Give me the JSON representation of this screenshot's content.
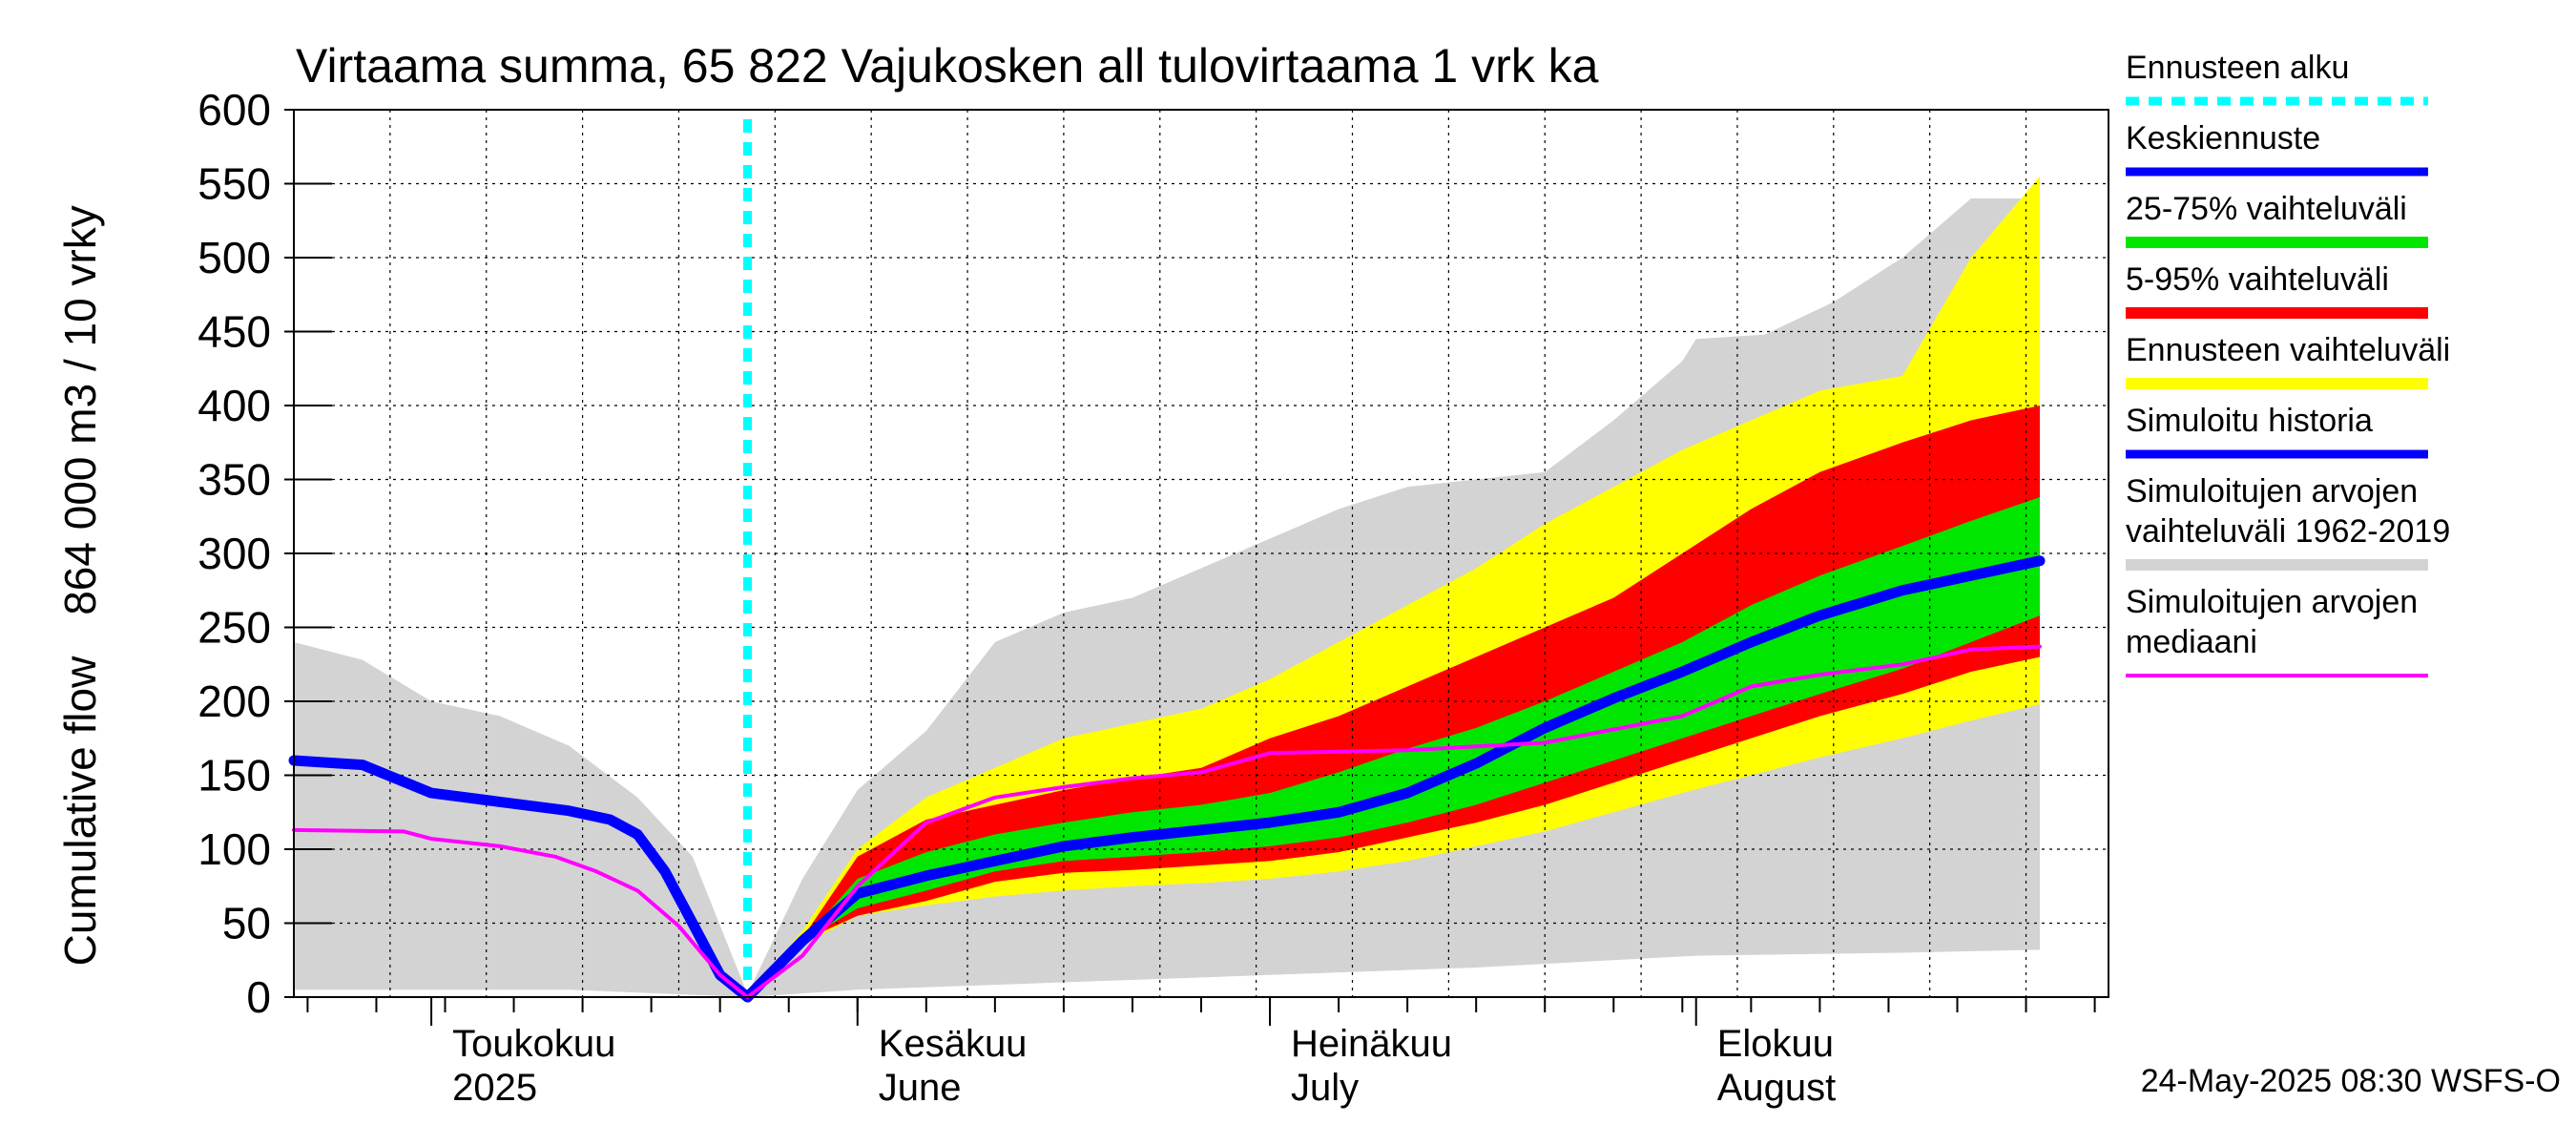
{
  "colors": {
    "sim_range": "#d3d3d3",
    "ens_range": "#ffff00",
    "p5_95": "#ff0000",
    "p25_75": "#00e600",
    "mean": "#0000ff",
    "median": "#ff00ff",
    "forecast_start": "#00ffff",
    "grid": "#000000"
  },
  "chart_data": {
    "type": "area",
    "title": "Virtaama summa, 65 822 Vajukosken all tulovirtaama 1 vrk ka",
    "ylabel_top": "864 000 m3 / 10 vrky",
    "ylabel_bottom": "Cumulative flow",
    "footer": "24-May-2025 08:30 WSFS-O",
    "xlim": [
      "2025-04-21",
      "2025-08-31"
    ],
    "ylim": [
      0,
      600
    ],
    "yticks": [
      0,
      50,
      100,
      150,
      200,
      250,
      300,
      350,
      400,
      450,
      500,
      550,
      600
    ],
    "forecast_start": "2025-05-24",
    "month_labels": [
      {
        "date": "2025-05-01",
        "line1": "Toukokuu",
        "line2": "2025"
      },
      {
        "date": "2025-06-01",
        "line1": "Kesäkuu",
        "line2": "June"
      },
      {
        "date": "2025-07-01",
        "line1": "Heinäkuu",
        "line2": "July"
      },
      {
        "date": "2025-08-01",
        "line1": "Elokuu",
        "line2": "August"
      }
    ],
    "legend": [
      {
        "label": "Ennusteen alku",
        "key": "forecast_start",
        "style": "dotted"
      },
      {
        "label": "Keskiennuste",
        "key": "mean",
        "style": "line"
      },
      {
        "label": "25-75% vaihteluväli",
        "key": "p25_75",
        "style": "band"
      },
      {
        "label": "5-95% vaihteluväli",
        "key": "p5_95",
        "style": "band"
      },
      {
        "label": "Ennusteen vaihteluväli",
        "key": "ens_range",
        "style": "band"
      },
      {
        "label": "Simuloitu historia",
        "key": "mean",
        "style": "line"
      },
      {
        "label": "Simuloitujen arvojen\nvaihteluväli 1962-2019",
        "key": "sim_range",
        "style": "band"
      },
      {
        "label": "Simuloitujen arvojen\nmediaani",
        "key": "median",
        "style": "line"
      }
    ],
    "sim_range_upper": [
      {
        "x": "2025-04-21",
        "y": 240
      },
      {
        "x": "2025-04-26",
        "y": 228
      },
      {
        "x": "2025-05-01",
        "y": 200
      },
      {
        "x": "2025-05-06",
        "y": 190
      },
      {
        "x": "2025-05-11",
        "y": 170
      },
      {
        "x": "2025-05-16",
        "y": 135
      },
      {
        "x": "2025-05-20",
        "y": 95
      },
      {
        "x": "2025-05-24",
        "y": 2
      },
      {
        "x": "2025-05-28",
        "y": 80
      },
      {
        "x": "2025-06-01",
        "y": 140
      },
      {
        "x": "2025-06-06",
        "y": 180
      },
      {
        "x": "2025-06-11",
        "y": 240
      },
      {
        "x": "2025-06-16",
        "y": 260
      },
      {
        "x": "2025-06-21",
        "y": 270
      },
      {
        "x": "2025-06-26",
        "y": 290
      },
      {
        "x": "2025-07-01",
        "y": 310
      },
      {
        "x": "2025-07-06",
        "y": 330
      },
      {
        "x": "2025-07-11",
        "y": 345
      },
      {
        "x": "2025-07-16",
        "y": 350
      },
      {
        "x": "2025-07-21",
        "y": 355
      },
      {
        "x": "2025-07-26",
        "y": 390
      },
      {
        "x": "2025-07-31",
        "y": 430
      },
      {
        "x": "2025-08-01",
        "y": 445
      },
      {
        "x": "2025-08-06",
        "y": 448
      },
      {
        "x": "2025-08-11",
        "y": 470
      },
      {
        "x": "2025-08-16",
        "y": 500
      },
      {
        "x": "2025-08-21",
        "y": 540
      },
      {
        "x": "2025-08-26",
        "y": 540
      }
    ],
    "sim_range_lower": [
      {
        "x": "2025-04-21",
        "y": 5
      },
      {
        "x": "2025-05-11",
        "y": 5
      },
      {
        "x": "2025-05-24",
        "y": 0
      },
      {
        "x": "2025-06-01",
        "y": 5
      },
      {
        "x": "2025-06-16",
        "y": 10
      },
      {
        "x": "2025-07-01",
        "y": 15
      },
      {
        "x": "2025-07-16",
        "y": 20
      },
      {
        "x": "2025-08-01",
        "y": 28
      },
      {
        "x": "2025-08-16",
        "y": 30
      },
      {
        "x": "2025-08-26",
        "y": 32
      }
    ],
    "ens_upper": [
      {
        "x": "2025-05-24",
        "y": 0
      },
      {
        "x": "2025-05-28",
        "y": 45
      },
      {
        "x": "2025-06-01",
        "y": 100
      },
      {
        "x": "2025-06-06",
        "y": 135
      },
      {
        "x": "2025-06-11",
        "y": 155
      },
      {
        "x": "2025-06-16",
        "y": 175
      },
      {
        "x": "2025-06-21",
        "y": 185
      },
      {
        "x": "2025-06-26",
        "y": 195
      },
      {
        "x": "2025-07-01",
        "y": 215
      },
      {
        "x": "2025-07-06",
        "y": 240
      },
      {
        "x": "2025-07-11",
        "y": 265
      },
      {
        "x": "2025-07-16",
        "y": 290
      },
      {
        "x": "2025-07-21",
        "y": 320
      },
      {
        "x": "2025-07-26",
        "y": 345
      },
      {
        "x": "2025-07-31",
        "y": 370
      },
      {
        "x": "2025-08-05",
        "y": 390
      },
      {
        "x": "2025-08-10",
        "y": 410
      },
      {
        "x": "2025-08-16",
        "y": 420
      },
      {
        "x": "2025-08-21",
        "y": 500
      },
      {
        "x": "2025-08-26",
        "y": 555
      }
    ],
    "ens_lower": [
      {
        "x": "2025-05-24",
        "y": 0
      },
      {
        "x": "2025-05-28",
        "y": 35
      },
      {
        "x": "2025-06-01",
        "y": 55
      },
      {
        "x": "2025-06-06",
        "y": 62
      },
      {
        "x": "2025-06-11",
        "y": 68
      },
      {
        "x": "2025-06-16",
        "y": 72
      },
      {
        "x": "2025-06-21",
        "y": 75
      },
      {
        "x": "2025-06-26",
        "y": 77
      },
      {
        "x": "2025-07-01",
        "y": 80
      },
      {
        "x": "2025-07-06",
        "y": 85
      },
      {
        "x": "2025-07-11",
        "y": 92
      },
      {
        "x": "2025-07-16",
        "y": 102
      },
      {
        "x": "2025-07-21",
        "y": 112
      },
      {
        "x": "2025-07-26",
        "y": 125
      },
      {
        "x": "2025-07-31",
        "y": 138
      },
      {
        "x": "2025-08-05",
        "y": 150
      },
      {
        "x": "2025-08-10",
        "y": 162
      },
      {
        "x": "2025-08-16",
        "y": 175
      },
      {
        "x": "2025-08-21",
        "y": 187
      },
      {
        "x": "2025-08-26",
        "y": 198
      }
    ],
    "p5_95_upper": [
      {
        "x": "2025-05-24",
        "y": 0
      },
      {
        "x": "2025-05-28",
        "y": 40
      },
      {
        "x": "2025-06-01",
        "y": 95
      },
      {
        "x": "2025-06-06",
        "y": 120
      },
      {
        "x": "2025-06-11",
        "y": 130
      },
      {
        "x": "2025-06-16",
        "y": 140
      },
      {
        "x": "2025-06-21",
        "y": 148
      },
      {
        "x": "2025-06-26",
        "y": 155
      },
      {
        "x": "2025-07-01",
        "y": 175
      },
      {
        "x": "2025-07-06",
        "y": 190
      },
      {
        "x": "2025-07-11",
        "y": 210
      },
      {
        "x": "2025-07-16",
        "y": 230
      },
      {
        "x": "2025-07-21",
        "y": 250
      },
      {
        "x": "2025-07-26",
        "y": 270
      },
      {
        "x": "2025-07-31",
        "y": 300
      },
      {
        "x": "2025-08-05",
        "y": 330
      },
      {
        "x": "2025-08-10",
        "y": 355
      },
      {
        "x": "2025-08-16",
        "y": 375
      },
      {
        "x": "2025-08-21",
        "y": 390
      },
      {
        "x": "2025-08-26",
        "y": 400
      }
    ],
    "p5_95_lower": [
      {
        "x": "2025-05-24",
        "y": 0
      },
      {
        "x": "2025-05-28",
        "y": 38
      },
      {
        "x": "2025-06-01",
        "y": 55
      },
      {
        "x": "2025-06-06",
        "y": 65
      },
      {
        "x": "2025-06-11",
        "y": 78
      },
      {
        "x": "2025-06-16",
        "y": 84
      },
      {
        "x": "2025-06-21",
        "y": 86
      },
      {
        "x": "2025-06-26",
        "y": 89
      },
      {
        "x": "2025-07-01",
        "y": 92
      },
      {
        "x": "2025-07-06",
        "y": 98
      },
      {
        "x": "2025-07-11",
        "y": 108
      },
      {
        "x": "2025-07-16",
        "y": 118
      },
      {
        "x": "2025-07-21",
        "y": 130
      },
      {
        "x": "2025-07-26",
        "y": 145
      },
      {
        "x": "2025-07-31",
        "y": 160
      },
      {
        "x": "2025-08-05",
        "y": 175
      },
      {
        "x": "2025-08-10",
        "y": 190
      },
      {
        "x": "2025-08-16",
        "y": 205
      },
      {
        "x": "2025-08-21",
        "y": 220
      },
      {
        "x": "2025-08-26",
        "y": 230
      }
    ],
    "p25_75_upper": [
      {
        "x": "2025-05-24",
        "y": 0
      },
      {
        "x": "2025-05-28",
        "y": 38
      },
      {
        "x": "2025-06-01",
        "y": 80
      },
      {
        "x": "2025-06-06",
        "y": 98
      },
      {
        "x": "2025-06-11",
        "y": 110
      },
      {
        "x": "2025-06-16",
        "y": 118
      },
      {
        "x": "2025-06-21",
        "y": 125
      },
      {
        "x": "2025-06-26",
        "y": 130
      },
      {
        "x": "2025-07-01",
        "y": 138
      },
      {
        "x": "2025-07-06",
        "y": 152
      },
      {
        "x": "2025-07-11",
        "y": 168
      },
      {
        "x": "2025-07-16",
        "y": 182
      },
      {
        "x": "2025-07-21",
        "y": 200
      },
      {
        "x": "2025-07-26",
        "y": 220
      },
      {
        "x": "2025-07-31",
        "y": 240
      },
      {
        "x": "2025-08-05",
        "y": 265
      },
      {
        "x": "2025-08-10",
        "y": 285
      },
      {
        "x": "2025-08-16",
        "y": 305
      },
      {
        "x": "2025-08-21",
        "y": 322
      },
      {
        "x": "2025-08-26",
        "y": 338
      }
    ],
    "p25_75_lower": [
      {
        "x": "2025-05-24",
        "y": 0
      },
      {
        "x": "2025-05-28",
        "y": 38
      },
      {
        "x": "2025-06-01",
        "y": 60
      },
      {
        "x": "2025-06-06",
        "y": 72
      },
      {
        "x": "2025-06-11",
        "y": 85
      },
      {
        "x": "2025-06-16",
        "y": 92
      },
      {
        "x": "2025-06-21",
        "y": 95
      },
      {
        "x": "2025-06-26",
        "y": 98
      },
      {
        "x": "2025-07-01",
        "y": 102
      },
      {
        "x": "2025-07-06",
        "y": 108
      },
      {
        "x": "2025-07-11",
        "y": 118
      },
      {
        "x": "2025-07-16",
        "y": 130
      },
      {
        "x": "2025-07-21",
        "y": 145
      },
      {
        "x": "2025-07-26",
        "y": 160
      },
      {
        "x": "2025-07-31",
        "y": 175
      },
      {
        "x": "2025-08-05",
        "y": 190
      },
      {
        "x": "2025-08-10",
        "y": 205
      },
      {
        "x": "2025-08-16",
        "y": 222
      },
      {
        "x": "2025-08-21",
        "y": 240
      },
      {
        "x": "2025-08-26",
        "y": 258
      }
    ],
    "series": [
      {
        "name": "Simuloitu historia",
        "key": "mean",
        "values": [
          {
            "x": "2025-04-21",
            "y": 160
          },
          {
            "x": "2025-04-26",
            "y": 157
          },
          {
            "x": "2025-05-01",
            "y": 138
          },
          {
            "x": "2025-05-06",
            "y": 132
          },
          {
            "x": "2025-05-11",
            "y": 126
          },
          {
            "x": "2025-05-14",
            "y": 120
          },
          {
            "x": "2025-05-16",
            "y": 110
          },
          {
            "x": "2025-05-18",
            "y": 85
          },
          {
            "x": "2025-05-20",
            "y": 50
          },
          {
            "x": "2025-05-22",
            "y": 15
          },
          {
            "x": "2025-05-24",
            "y": 0
          }
        ]
      },
      {
        "name": "Keskiennuste",
        "key": "mean",
        "values": [
          {
            "x": "2025-05-24",
            "y": 0
          },
          {
            "x": "2025-05-28",
            "y": 38
          },
          {
            "x": "2025-06-01",
            "y": 70
          },
          {
            "x": "2025-06-06",
            "y": 82
          },
          {
            "x": "2025-06-11",
            "y": 92
          },
          {
            "x": "2025-06-16",
            "y": 102
          },
          {
            "x": "2025-06-21",
            "y": 108
          },
          {
            "x": "2025-06-26",
            "y": 113
          },
          {
            "x": "2025-07-01",
            "y": 118
          },
          {
            "x": "2025-07-06",
            "y": 125
          },
          {
            "x": "2025-07-11",
            "y": 138
          },
          {
            "x": "2025-07-16",
            "y": 158
          },
          {
            "x": "2025-07-21",
            "y": 182
          },
          {
            "x": "2025-07-26",
            "y": 202
          },
          {
            "x": "2025-07-31",
            "y": 220
          },
          {
            "x": "2025-08-05",
            "y": 240
          },
          {
            "x": "2025-08-10",
            "y": 258
          },
          {
            "x": "2025-08-16",
            "y": 275
          },
          {
            "x": "2025-08-21",
            "y": 285
          },
          {
            "x": "2025-08-26",
            "y": 295
          }
        ]
      },
      {
        "name": "Simuloitujen arvojen mediaani",
        "key": "median",
        "values": [
          {
            "x": "2025-04-21",
            "y": 113
          },
          {
            "x": "2025-04-29",
            "y": 112
          },
          {
            "x": "2025-05-01",
            "y": 107
          },
          {
            "x": "2025-05-06",
            "y": 102
          },
          {
            "x": "2025-05-10",
            "y": 95
          },
          {
            "x": "2025-05-13",
            "y": 85
          },
          {
            "x": "2025-05-16",
            "y": 72
          },
          {
            "x": "2025-05-19",
            "y": 48
          },
          {
            "x": "2025-05-22",
            "y": 15
          },
          {
            "x": "2025-05-24",
            "y": 0
          },
          {
            "x": "2025-05-28",
            "y": 28
          },
          {
            "x": "2025-06-01",
            "y": 75
          },
          {
            "x": "2025-06-06",
            "y": 118
          },
          {
            "x": "2025-06-11",
            "y": 135
          },
          {
            "x": "2025-06-16",
            "y": 142
          },
          {
            "x": "2025-06-21",
            "y": 148
          },
          {
            "x": "2025-06-26",
            "y": 152
          },
          {
            "x": "2025-07-01",
            "y": 165
          },
          {
            "x": "2025-07-11",
            "y": 167
          },
          {
            "x": "2025-07-21",
            "y": 172
          },
          {
            "x": "2025-07-31",
            "y": 190
          },
          {
            "x": "2025-08-05",
            "y": 210
          },
          {
            "x": "2025-08-10",
            "y": 218
          },
          {
            "x": "2025-08-16",
            "y": 225
          },
          {
            "x": "2025-08-21",
            "y": 235
          },
          {
            "x": "2025-08-26",
            "y": 237
          }
        ]
      }
    ]
  }
}
